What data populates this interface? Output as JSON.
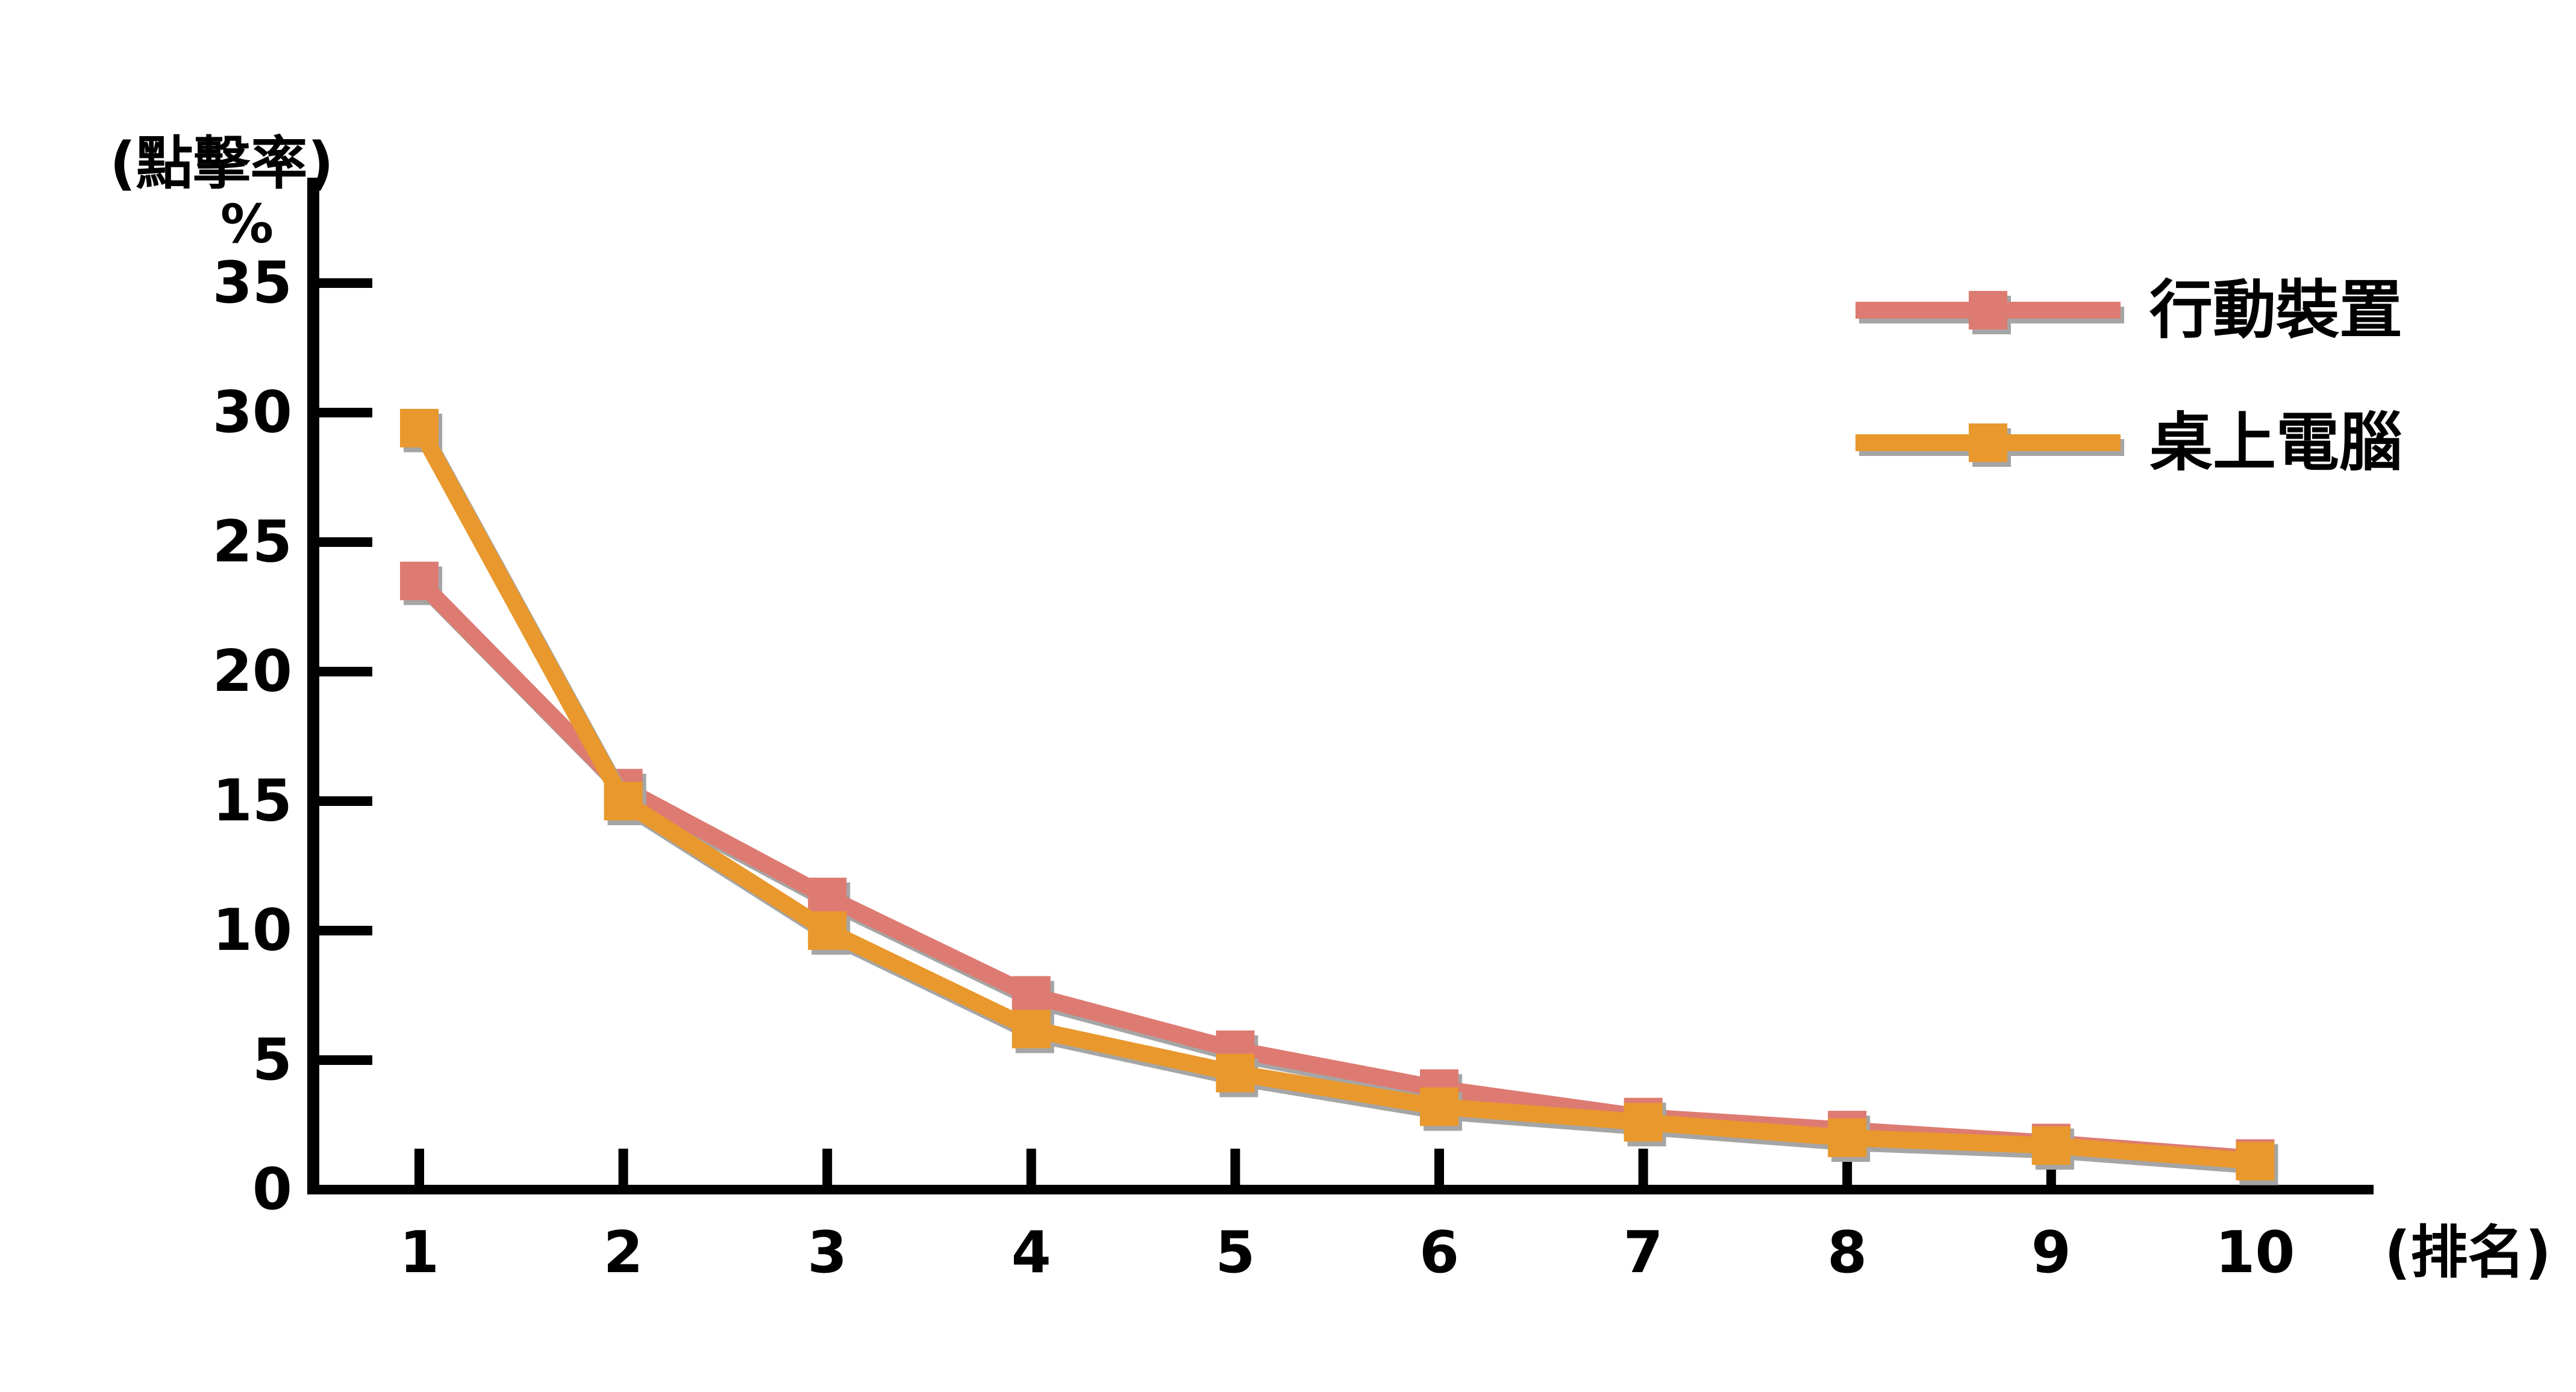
{
  "chart_data": {
    "type": "line",
    "title": "(點擊率)",
    "y_unit": "%",
    "xlabel": "(排名)",
    "x": [
      1,
      2,
      3,
      4,
      5,
      6,
      7,
      8,
      9,
      10
    ],
    "series": [
      {
        "name": "行動裝置",
        "color": "#dd7b72",
        "values": [
          23.5,
          15.5,
          11.3,
          7.5,
          5.4,
          3.9,
          2.8,
          2.3,
          1.8,
          1.2
        ]
      },
      {
        "name": "桌上電腦",
        "color": "#e8982c",
        "values": [
          29.4,
          15.0,
          10.0,
          6.2,
          4.5,
          3.2,
          2.6,
          2.0,
          1.7,
          1.1
        ]
      }
    ],
    "ylim": [
      0,
      35
    ],
    "ytick_step": 5,
    "legend_position": "top-right",
    "grid": false,
    "marker": "square",
    "colors": {
      "axis": "#000000",
      "shadow": "#a5a5a5",
      "background": "#ffffff"
    }
  }
}
